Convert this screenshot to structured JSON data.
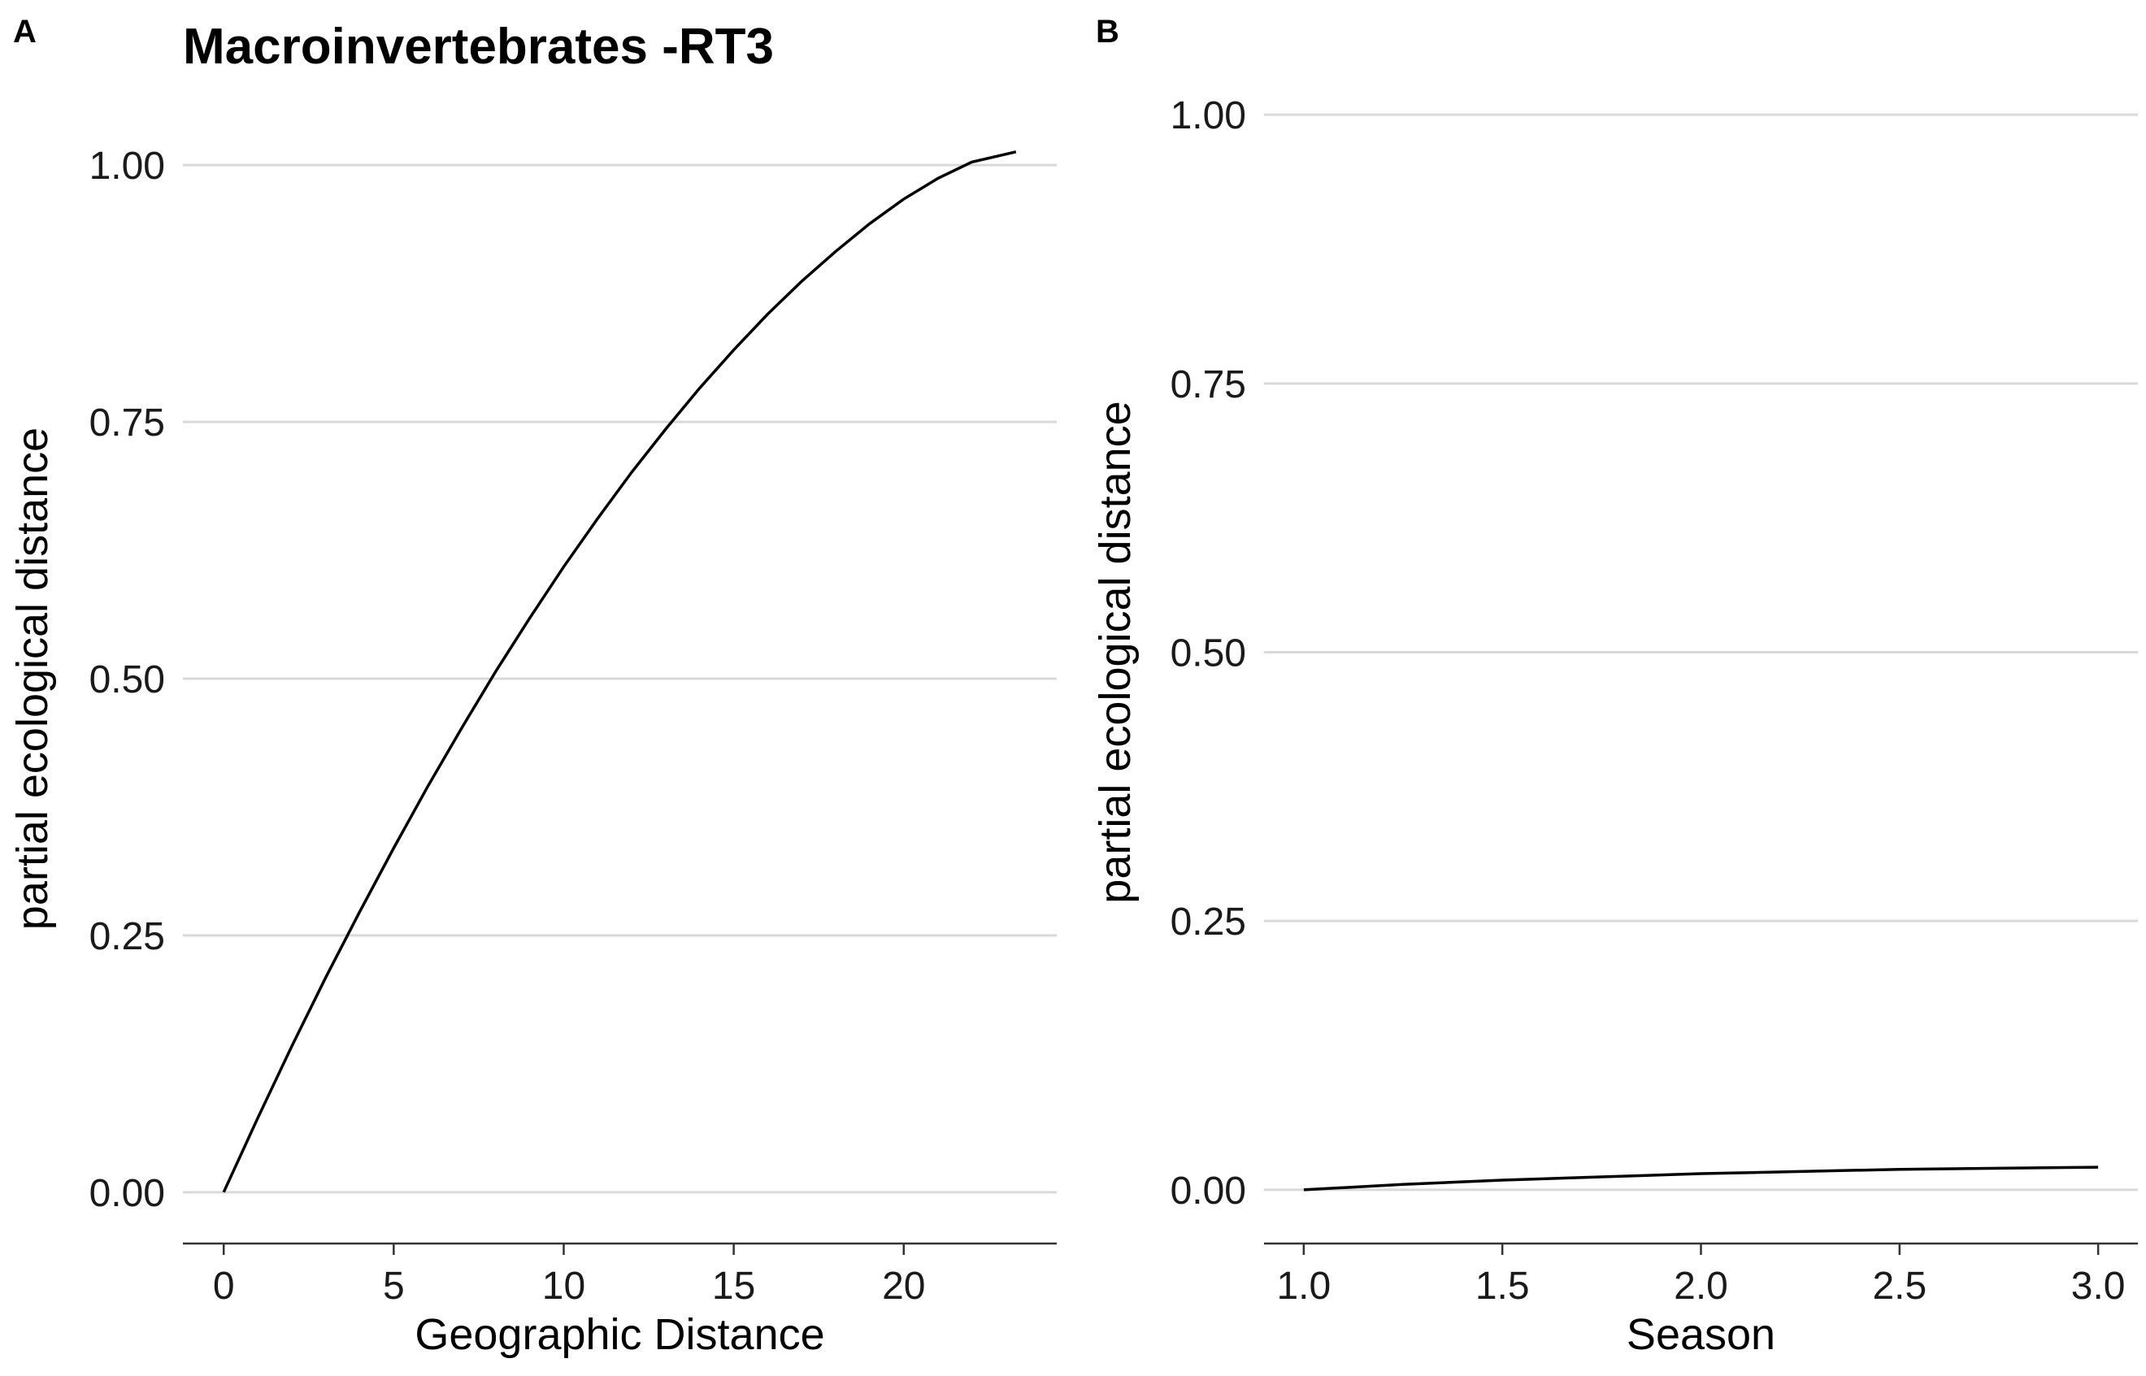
{
  "chart_data": [
    {
      "panel_label": "A",
      "type": "line",
      "title": "Macroinvertebrates -RT3",
      "xlabel": "Geographic Distance",
      "ylabel": "partial ecological distance",
      "xlim": [
        -1.2,
        24.5
      ],
      "ylim": [
        -0.05,
        1.05
      ],
      "xticks": [
        0,
        5,
        10,
        15,
        20
      ],
      "xtick_labels": [
        "0",
        "5",
        "10",
        "15",
        "20"
      ],
      "yticks": [
        0,
        0.25,
        0.5,
        0.75,
        1.0
      ],
      "ytick_labels": [
        "0.00",
        "0.25",
        "0.50",
        "0.75",
        "1.00"
      ],
      "grid": "horizontal",
      "series": [
        {
          "x": [
            0,
            1,
            2,
            3,
            4,
            5,
            6,
            7,
            8,
            9,
            10,
            11,
            12,
            13,
            14,
            15,
            16,
            17,
            18,
            19,
            20,
            21,
            22,
            23.3
          ],
          "y": [
            0.0,
            0.072,
            0.142,
            0.209,
            0.273,
            0.335,
            0.395,
            0.452,
            0.507,
            0.559,
            0.609,
            0.656,
            0.701,
            0.743,
            0.783,
            0.82,
            0.855,
            0.887,
            0.916,
            0.943,
            0.967,
            0.987,
            1.003,
            1.013
          ]
        }
      ]
    },
    {
      "panel_label": "B",
      "type": "line",
      "title": "",
      "xlabel": "Season",
      "ylabel": "partial ecological distance",
      "xlim": [
        0.9,
        3.1
      ],
      "ylim": [
        -0.05,
        1.05
      ],
      "xticks": [
        1.0,
        1.5,
        2.0,
        2.5,
        3.0
      ],
      "xtick_labels": [
        "1.0",
        "1.5",
        "2.0",
        "2.5",
        "3.0"
      ],
      "yticks": [
        0,
        0.25,
        0.5,
        0.75,
        1.0
      ],
      "ytick_labels": [
        "0.00",
        "0.25",
        "0.50",
        "0.75",
        "1.00"
      ],
      "grid": "horizontal",
      "series": [
        {
          "x": [
            1.0,
            1.25,
            1.5,
            1.75,
            2.0,
            2.25,
            2.5,
            2.75,
            3.0
          ],
          "y": [
            0.0,
            0.005,
            0.009,
            0.012,
            0.015,
            0.017,
            0.019,
            0.02,
            0.021
          ]
        }
      ]
    }
  ]
}
